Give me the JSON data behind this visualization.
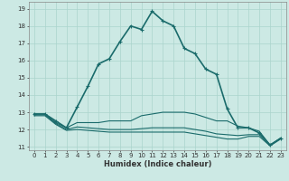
{
  "title": "",
  "xlabel": "Humidex (Indice chaleur)",
  "xlim": [
    -0.5,
    23.5
  ],
  "ylim": [
    10.8,
    19.4
  ],
  "yticks": [
    11,
    12,
    13,
    14,
    15,
    16,
    17,
    18,
    19
  ],
  "xticks": [
    0,
    1,
    2,
    3,
    4,
    5,
    6,
    7,
    8,
    9,
    10,
    11,
    12,
    13,
    14,
    15,
    16,
    17,
    18,
    19,
    20,
    21,
    22,
    23
  ],
  "bg_color": "#cce9e4",
  "grid_color": "#aad4cc",
  "line_color": "#1a6b6b",
  "lines": [
    {
      "x": [
        0,
        1,
        2,
        3,
        4,
        5,
        6,
        7,
        8,
        9,
        10,
        11,
        12,
        13,
        14,
        15,
        16,
        17,
        18,
        19,
        20,
        21,
        22,
        23
      ],
      "y": [
        12.9,
        12.9,
        12.5,
        12.1,
        13.3,
        14.5,
        15.8,
        16.1,
        17.1,
        18.0,
        17.8,
        18.85,
        18.3,
        18.0,
        16.7,
        16.4,
        15.5,
        15.2,
        13.2,
        12.1,
        12.1,
        11.8,
        11.1,
        11.5
      ],
      "marker": true,
      "lw": 1.2
    },
    {
      "x": [
        0,
        1,
        2,
        3,
        4,
        5,
        6,
        7,
        8,
        9,
        10,
        11,
        12,
        13,
        14,
        15,
        16,
        17,
        18,
        19,
        20,
        21,
        22,
        23
      ],
      "y": [
        12.9,
        12.9,
        12.4,
        12.1,
        12.4,
        12.4,
        12.4,
        12.5,
        12.5,
        12.5,
        12.8,
        12.9,
        13.0,
        13.0,
        13.0,
        12.9,
        12.7,
        12.5,
        12.5,
        12.2,
        12.1,
        11.9,
        11.1,
        11.5
      ],
      "marker": false,
      "lw": 0.8
    },
    {
      "x": [
        0,
        1,
        2,
        3,
        4,
        5,
        6,
        7,
        8,
        9,
        10,
        11,
        12,
        13,
        14,
        15,
        16,
        17,
        18,
        19,
        20,
        21,
        22,
        23
      ],
      "y": [
        12.85,
        12.85,
        12.35,
        12.0,
        12.15,
        12.1,
        12.05,
        12.0,
        12.0,
        12.0,
        12.05,
        12.1,
        12.1,
        12.1,
        12.1,
        12.0,
        11.9,
        11.75,
        11.7,
        11.65,
        11.7,
        11.7,
        11.1,
        11.5
      ],
      "marker": false,
      "lw": 0.8
    },
    {
      "x": [
        0,
        1,
        2,
        3,
        4,
        5,
        6,
        7,
        8,
        9,
        10,
        11,
        12,
        13,
        14,
        15,
        16,
        17,
        18,
        19,
        20,
        21,
        22,
        23
      ],
      "y": [
        12.8,
        12.8,
        12.3,
        11.95,
        12.0,
        11.95,
        11.9,
        11.85,
        11.85,
        11.85,
        11.85,
        11.85,
        11.85,
        11.85,
        11.85,
        11.75,
        11.65,
        11.55,
        11.45,
        11.45,
        11.6,
        11.6,
        11.05,
        11.45
      ],
      "marker": false,
      "lw": 0.8
    }
  ]
}
